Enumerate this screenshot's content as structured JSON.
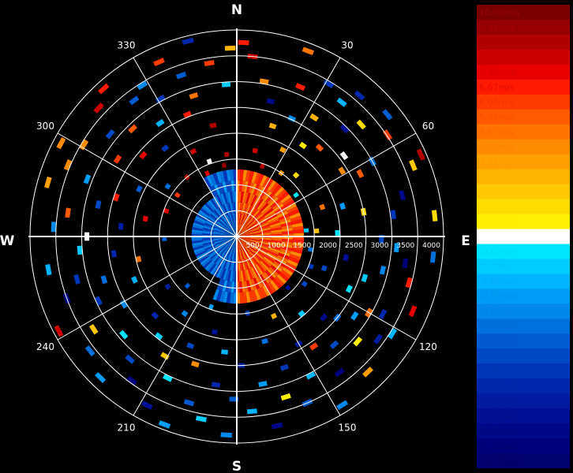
{
  "chart_data": {
    "type": "polar-ppi",
    "title": "",
    "compass": {
      "north": "N",
      "east": "E",
      "south": "S",
      "west": "W"
    },
    "bearing_labels": [
      "30",
      "60",
      "120",
      "150",
      "210",
      "240",
      "300",
      "330"
    ],
    "range_ticks": [
      500,
      1000,
      1500,
      2000,
      2500,
      3000,
      3500,
      4000
    ],
    "range_tick_labels": [
      "500",
      "1000",
      "1500",
      "2000",
      "2500",
      "3000",
      "3500",
      "4000"
    ],
    "range_max": 4000,
    "units": "m/s",
    "velocity_range": [
      -10,
      10
    ],
    "colorbar": {
      "labels": [
        "10.00m/s",
        "9.33m/s",
        "8.67m/s",
        "8.00m/s",
        "7.33m/s",
        "6.67m/s",
        "6.00m/s",
        "5.33m/s",
        "4.67m/s",
        "4.00m/s",
        "3.33m/s",
        "2.67m/s",
        "2.00m/s",
        "1.33m/s",
        "0.67m/s",
        "0.00m/s",
        "-0.67m/s",
        "-1.33m/s",
        "-2.00m/s",
        "-2.67m/s",
        "-3.33m/s",
        "-4.00m/s",
        "-4.67m/s",
        "-5.33m/s",
        "-6.00m/s",
        "-6.67m/s",
        "-7.33m/s",
        "-8.00m/s",
        "-8.67m/s",
        "-9.33m/s",
        "-10.00m/s"
      ],
      "colors": [
        "#7a0000",
        "#960000",
        "#b00000",
        "#cc0000",
        "#e80000",
        "#ff1a00",
        "#ff3c00",
        "#ff5a00",
        "#ff7400",
        "#ff8c00",
        "#ffa000",
        "#ffb400",
        "#ffc800",
        "#ffdc00",
        "#fff000",
        "#ffffff",
        "#00e5ff",
        "#00ccff",
        "#00b4ff",
        "#009cf5",
        "#0088ea",
        "#0070dc",
        "#005ad0",
        "#0048c4",
        "#0036b8",
        "#0026ac",
        "#001aa0",
        "#001094",
        "#000888",
        "#00007c",
        "#000070"
      ],
      "text_colors": [
        "#9b0000",
        "#a80000",
        "#b50000",
        "#c40000",
        "#d60000",
        "#e81000",
        "#f53000",
        "#ff4c00",
        "#ff6600",
        "#ff8000",
        "#ff9800",
        "#ffb000",
        "#ffc400",
        "#ffd800",
        "#ffea00",
        "#ffffff",
        "#00d8ff",
        "#00c4ff",
        "#00aaff",
        "#0094f0",
        "#0080e4",
        "#006cd6",
        "#0058c8",
        "#0046bc",
        "#0036ae",
        "#0028a0",
        "#001c94",
        "#001288",
        "#000a7c",
        "#000470",
        "#000064"
      ]
    },
    "near_field": {
      "range_max": 1300,
      "approach_sector_deg": [
        0,
        180
      ],
      "approach_speed": 5.5,
      "recede_sector_deg": [
        180,
        360
      ],
      "recede_speed": -4.5
    },
    "returns": [
      {
        "az": 2,
        "r": 3760,
        "v": 6.5
      },
      {
        "az": 5,
        "r": 3500,
        "v": 7.8
      },
      {
        "az": 10,
        "r": 3050,
        "v": 4.2
      },
      {
        "az": 14,
        "r": 2700,
        "v": -8.6
      },
      {
        "az": 18,
        "r": 2250,
        "v": 2.4
      },
      {
        "az": 21,
        "r": 3850,
        "v": 4.5
      },
      {
        "az": 23,
        "r": 3150,
        "v": 6.9
      },
      {
        "az": 25,
        "r": 2520,
        "v": -3.2
      },
      {
        "az": 28,
        "r": 1900,
        "v": 3.3
      },
      {
        "az": 31,
        "r": 3450,
        "v": -5.9
      },
      {
        "az": 33,
        "r": 2750,
        "v": 2.6
      },
      {
        "az": 36,
        "r": 2180,
        "v": 0.7
      },
      {
        "az": 38,
        "r": 3300,
        "v": -2.0
      },
      {
        "az": 41,
        "r": 3620,
        "v": -6.7
      },
      {
        "az": 43,
        "r": 2350,
        "v": 5.3
      },
      {
        "az": 45,
        "r": 2950,
        "v": -8.2
      },
      {
        "az": 48,
        "r": 3240,
        "v": 1.4
      },
      {
        "az": 51,
        "r": 3750,
        "v": -4.7
      },
      {
        "az": 53,
        "r": 2600,
        "v": 0.3
      },
      {
        "az": 56,
        "r": 3520,
        "v": 6.1
      },
      {
        "az": 58,
        "r": 2400,
        "v": 3.9
      },
      {
        "az": 61,
        "r": 3000,
        "v": -4.1
      },
      {
        "az": 63,
        "r": 2680,
        "v": 5.6
      },
      {
        "az": 66,
        "r": 3900,
        "v": 8.9
      },
      {
        "az": 68,
        "r": 3680,
        "v": 1.7
      },
      {
        "az": 71,
        "r": 1750,
        "v": 4.8
      },
      {
        "az": 74,
        "r": 2130,
        "v": -2.6
      },
      {
        "az": 76,
        "r": 3300,
        "v": -8.7
      },
      {
        "az": 79,
        "r": 2500,
        "v": 1.1
      },
      {
        "az": 82,
        "r": 3060,
        "v": -6.0
      },
      {
        "az": 84,
        "r": 3850,
        "v": 1.3
      },
      {
        "az": 86,
        "r": 1550,
        "v": 2.1
      },
      {
        "az": 88,
        "r": 1950,
        "v": -0.9
      },
      {
        "az": 91,
        "r": 2800,
        "v": -5.0
      },
      {
        "az": 94,
        "r": 3100,
        "v": -2.7
      },
      {
        "az": 96,
        "r": 3820,
        "v": -4.0
      },
      {
        "az": 99,
        "r": 3300,
        "v": -9.0
      },
      {
        "az": 101,
        "r": 2150,
        "v": -8.0
      },
      {
        "az": 103,
        "r": 2900,
        "v": -3.6
      },
      {
        "az": 105,
        "r": 3450,
        "v": 6.6
      },
      {
        "az": 108,
        "r": 2600,
        "v": -1.5
      },
      {
        "az": 110,
        "r": 1800,
        "v": -5.3
      },
      {
        "az": 113,
        "r": 3700,
        "v": 7.4
      },
      {
        "az": 115,
        "r": 2400,
        "v": -0.6
      },
      {
        "az": 118,
        "r": 3200,
        "v": -6.8
      },
      {
        "az": 120,
        "r": 2950,
        "v": 4.4
      },
      {
        "az": 122,
        "r": 3550,
        "v": -1.9
      },
      {
        "az": 124,
        "r": 2750,
        "v": -2.9
      },
      {
        "az": 126,
        "r": 3380,
        "v": -7.1
      },
      {
        "az": 129,
        "r": 2500,
        "v": -4.3
      },
      {
        "az": 131,
        "r": 3100,
        "v": 0.4
      },
      {
        "az": 133,
        "r": 2300,
        "v": -8.9
      },
      {
        "az": 136,
        "r": 3650,
        "v": 3.1
      },
      {
        "az": 138,
        "r": 2820,
        "v": -5.6
      },
      {
        "az": 140,
        "r": 1950,
        "v": -1.2
      },
      {
        "az": 143,
        "r": 3300,
        "v": -9.4
      },
      {
        "az": 145,
        "r": 2600,
        "v": 5.8
      },
      {
        "az": 148,
        "r": 3850,
        "v": -3.0
      },
      {
        "az": 150,
        "r": 2400,
        "v": -7.6
      },
      {
        "az": 152,
        "r": 3050,
        "v": -2.2
      },
      {
        "az": 155,
        "r": 1700,
        "v": 2.9
      },
      {
        "az": 157,
        "r": 3500,
        "v": -4.9
      },
      {
        "az": 160,
        "r": 2700,
        "v": -6.3
      },
      {
        "az": 163,
        "r": 3250,
        "v": 0.9
      },
      {
        "az": 165,
        "r": 2100,
        "v": -3.8
      },
      {
        "az": 168,
        "r": 3750,
        "v": -8.4
      },
      {
        "az": 170,
        "r": 2900,
        "v": -2.4
      },
      {
        "az": 172,
        "r": 1500,
        "v": -5.8
      },
      {
        "az": 175,
        "r": 3400,
        "v": -1.7
      },
      {
        "az": 178,
        "r": 2500,
        "v": -7.2
      },
      {
        "az": 181,
        "r": 3150,
        "v": -4.4
      },
      {
        "az": 183,
        "r": 3850,
        "v": -3.5
      },
      {
        "az": 186,
        "r": 2250,
        "v": -2.3
      },
      {
        "az": 188,
        "r": 2900,
        "v": -6.4
      },
      {
        "az": 191,
        "r": 3600,
        "v": -1.1
      },
      {
        "az": 193,
        "r": 1900,
        "v": -8.1
      },
      {
        "az": 196,
        "r": 3350,
        "v": -4.8
      },
      {
        "az": 198,
        "r": 2600,
        "v": 3.7
      },
      {
        "az": 201,
        "r": 3900,
        "v": -2.8
      },
      {
        "az": 203,
        "r": 2300,
        "v": -5.4
      },
      {
        "az": 206,
        "r": 3050,
        "v": -0.8
      },
      {
        "az": 208,
        "r": 3700,
        "v": -7.7
      },
      {
        "az": 211,
        "r": 2700,
        "v": 2.3
      },
      {
        "az": 214,
        "r": 1800,
        "v": -3.4
      },
      {
        "az": 216,
        "r": 3450,
        "v": -9.1
      },
      {
        "az": 218,
        "r": 2450,
        "v": -1.4
      },
      {
        "az": 221,
        "r": 3150,
        "v": -5.1
      },
      {
        "az": 224,
        "r": 3800,
        "v": -2.5
      },
      {
        "az": 226,
        "r": 2200,
        "v": -6.9
      },
      {
        "az": 229,
        "r": 2900,
        "v": -0.5
      },
      {
        "az": 232,
        "r": 3600,
        "v": -4.2
      },
      {
        "az": 234,
        "r": 1650,
        "v": -7.4
      },
      {
        "az": 237,
        "r": 3300,
        "v": 1.9
      },
      {
        "az": 239,
        "r": 2550,
        "v": -3.1
      },
      {
        "az": 242,
        "r": 3900,
        "v": 7.9
      },
      {
        "az": 245,
        "r": 2950,
        "v": -6.1
      },
      {
        "az": 247,
        "r": 2150,
        "v": -1.8
      },
      {
        "az": 250,
        "r": 3500,
        "v": -8.8
      },
      {
        "az": 252,
        "r": 2700,
        "v": -3.9
      },
      {
        "az": 255,
        "r": 3200,
        "v": -5.7
      },
      {
        "az": 257,
        "r": 1950,
        "v": 4.6
      },
      {
        "az": 260,
        "r": 3700,
        "v": -2.1
      },
      {
        "az": 262,
        "r": 2400,
        "v": -6.6
      },
      {
        "az": 265,
        "r": 3050,
        "v": -1.3
      },
      {
        "az": 268,
        "r": 1400,
        "v": -4.6
      },
      {
        "az": 270,
        "r": 2900,
        "v": 0.2
      },
      {
        "az": 273,
        "r": 3550,
        "v": -3.3
      },
      {
        "az": 275,
        "r": 2250,
        "v": -7.0
      },
      {
        "az": 278,
        "r": 3300,
        "v": 5.1
      },
      {
        "az": 281,
        "r": 1800,
        "v": 7.6
      },
      {
        "az": 283,
        "r": 2750,
        "v": -5.2
      },
      {
        "az": 286,
        "r": 3800,
        "v": 3.4
      },
      {
        "az": 288,
        "r": 2450,
        "v": 6.4
      },
      {
        "az": 291,
        "r": 3100,
        "v": -2.6
      },
      {
        "az": 293,
        "r": 3550,
        "v": 4.1
      },
      {
        "az": 296,
        "r": 2100,
        "v": -4.5
      },
      {
        "az": 298,
        "r": 3850,
        "v": 4.3
      },
      {
        "az": 301,
        "r": 3450,
        "v": 3.8
      },
      {
        "az": 303,
        "r": 2750,
        "v": 6.0
      },
      {
        "az": 306,
        "r": 1650,
        "v": -3.7
      },
      {
        "az": 309,
        "r": 3150,
        "v": -5.5
      },
      {
        "az": 311,
        "r": 2400,
        "v": 7.2
      },
      {
        "az": 313,
        "r": 3650,
        "v": 8.3
      },
      {
        "az": 316,
        "r": 2900,
        "v": 5.2
      },
      {
        "az": 318,
        "r": 3850,
        "v": 6.8
      },
      {
        "az": 321,
        "r": 2200,
        "v": -6.2
      },
      {
        "az": 323,
        "r": 3300,
        "v": -4.6
      },
      {
        "az": 326,
        "r": 2650,
        "v": -2.0
      },
      {
        "az": 328,
        "r": 3450,
        "v": -3.6
      },
      {
        "az": 331,
        "r": 3050,
        "v": -5.9
      },
      {
        "az": 333,
        "r": 1850,
        "v": 8.1
      },
      {
        "az": 336,
        "r": 3700,
        "v": 6.3
      },
      {
        "az": 338,
        "r": 2550,
        "v": 7.0
      },
      {
        "az": 341,
        "r": 3300,
        "v": -4.9
      },
      {
        "az": 343,
        "r": 2850,
        "v": 4.9
      },
      {
        "az": 346,
        "r": 3900,
        "v": -6.5
      },
      {
        "az": 348,
        "r": 2200,
        "v": 8.6
      },
      {
        "az": 351,
        "r": 3400,
        "v": 5.7
      },
      {
        "az": 353,
        "r": 1600,
        "v": 9.0
      },
      {
        "az": 356,
        "r": 2950,
        "v": -1.6
      },
      {
        "az": 358,
        "r": 3650,
        "v": 3.0
      },
      {
        "az": 12,
        "r": 1700,
        "v": 7.7
      },
      {
        "az": 20,
        "r": 1450,
        "v": 8.8
      },
      {
        "az": 35,
        "r": 1500,
        "v": 3.2
      },
      {
        "az": 44,
        "r": 1650,
        "v": 1.6
      },
      {
        "az": 55,
        "r": 1400,
        "v": -0.4
      },
      {
        "az": 85,
        "r": 1350,
        "v": -1.6
      },
      {
        "az": 100,
        "r": 1450,
        "v": -4.1
      },
      {
        "az": 112,
        "r": 1550,
        "v": -6.1
      },
      {
        "az": 125,
        "r": 1600,
        "v": -5.0
      },
      {
        "az": 135,
        "r": 1400,
        "v": -8.3
      },
      {
        "az": 200,
        "r": 1450,
        "v": -2.4
      },
      {
        "az": 225,
        "r": 1350,
        "v": -4.8
      },
      {
        "az": 290,
        "r": 1450,
        "v": 7.4
      },
      {
        "az": 305,
        "r": 1400,
        "v": 6.2
      },
      {
        "az": 320,
        "r": 1500,
        "v": 8.5
      },
      {
        "az": 335,
        "r": 1350,
        "v": 7.3
      },
      {
        "az": 340,
        "r": 1550,
        "v": -0.2
      },
      {
        "az": 350,
        "r": 1400,
        "v": 9.3
      }
    ]
  }
}
